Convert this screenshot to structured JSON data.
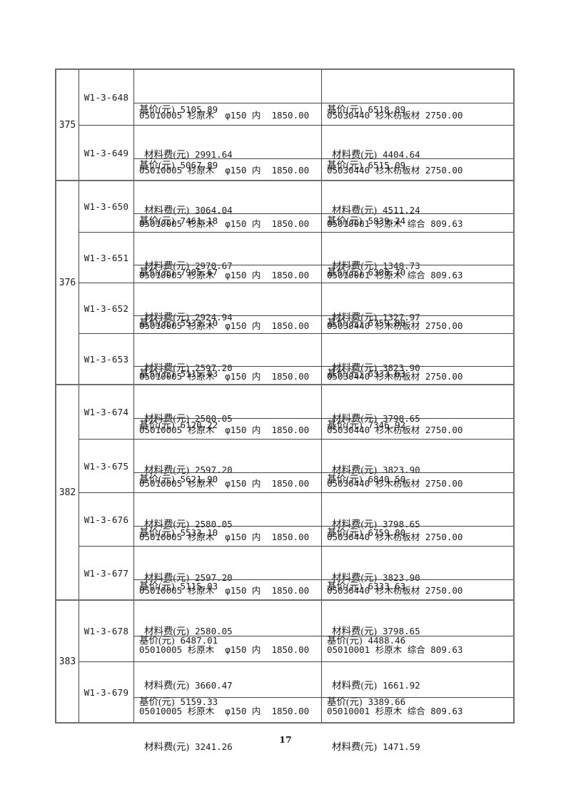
{
  "page": {
    "number": "17"
  },
  "labels": {
    "base_price": "基价(元)",
    "material_fee": "材料费(元)"
  },
  "groups": [
    {
      "id": "375",
      "items": [
        {
          "code": "W1-3-648",
          "left": {
            "base_price": "5105.89",
            "material_fee": "2991.64",
            "material": "05010005 杉原木  φ150 内  1850.00"
          },
          "right": {
            "base_price": "6518.89",
            "material_fee": "4404.64",
            "material": "05030440 杉木枋板材 2750.00"
          }
        },
        {
          "code": "W1-3-649",
          "left": {
            "base_price": "5067.89",
            "material_fee": "3064.04",
            "material": "05010005 杉原木  φ150 内  1850.00"
          },
          "right": {
            "base_price": "6515.09",
            "material_fee": "4511.24",
            "material": "05030440 杉木枋板材 2750.00"
          }
        }
      ]
    },
    {
      "id": "376",
      "items": [
        {
          "code": "W1-3-650",
          "left": {
            "base_price": "7461.18",
            "material_fee": "2970.67",
            "material": "05010005 杉原木  φ150 内  1850.00"
          },
          "right": {
            "base_price": "5839.24",
            "material_fee": "1348.73",
            "material": "05010001 杉原木 综合 809.63"
          }
        },
        {
          "code": "W1-3-651",
          "left": {
            "base_price": "7905.67",
            "material_fee": "2924.94",
            "material": "05010005 杉原木  φ150 内  1850.00"
          },
          "right": {
            "base_price": "6308.70",
            "material_fee": "1327.97",
            "material": "05010001 杉原木 综合 809.63"
          }
        },
        {
          "code": "W1-3-652",
          "left": {
            "base_price": "5533.10",
            "material_fee": "2597.20",
            "material": "05010005 杉原木  φ150 内  1850.00"
          },
          "right": {
            "base_price": "6759.80",
            "material_fee": "3823.90",
            "material": "05030440 杉木枋板材 2750.00"
          }
        },
        {
          "code": "W1-3-653",
          "left": {
            "base_price": "5115.03",
            "material_fee": "2580.05",
            "material": "05010005 杉原木  φ150 内  1850.00"
          },
          "right": {
            "base_price": "6333.63",
            "material_fee": "3798.65",
            "material": "05030440 杉木枋板材 2750.00"
          }
        }
      ]
    },
    {
      "id": "382",
      "items": [
        {
          "code": "W1-3-674",
          "left": {
            "base_price": "6120.22",
            "material_fee": "2597.20",
            "material": "05010005 杉原木  φ150 内  1850.00"
          },
          "right": {
            "base_price": "7346.92",
            "material_fee": "3823.90",
            "material": "05030440 杉木枋板材 2750.00"
          }
        },
        {
          "code": "W1-3-675",
          "left": {
            "base_price": "5621.90",
            "material_fee": "2580.05",
            "material": "05010005 杉原木  φ150 内  1850.00"
          },
          "right": {
            "base_price": "6840.50",
            "material_fee": "3798.65",
            "material": "05030440 杉木枋板材 2750.00"
          }
        },
        {
          "code": "W1-3-676",
          "left": {
            "base_price": "5533.10",
            "material_fee": "2597.20",
            "material": "05010005 杉原木  φ150 内  1850.00"
          },
          "right": {
            "base_price": "6759.80",
            "material_fee": "3823.90",
            "material": "05030440 杉木枋板材 2750.00"
          }
        },
        {
          "code": "W1-3-677",
          "left": {
            "base_price": "5115.03",
            "material_fee": "2580.05",
            "material": "05010005 杉原木  φ150 内  1850.00"
          },
          "right": {
            "base_price": "6333.63",
            "material_fee": "3798.65",
            "material": "05030440 杉木枋板材 2750.00"
          }
        }
      ]
    },
    {
      "id": "383",
      "items": [
        {
          "code": "W1-3-678",
          "left": {
            "base_price": "6487.01",
            "material_fee": "3660.47",
            "material": "05010005 杉原木  φ150 内  1850.00"
          },
          "right": {
            "base_price": "4488.46",
            "material_fee": "1661.92",
            "material": "05010001 杉原木 综合 809.63"
          }
        },
        {
          "code": "W1-3-679",
          "left": {
            "base_price": "5159.33",
            "material_fee": "3241.26",
            "material": "05010005 杉原木  φ150 内  1850.00"
          },
          "right": {
            "base_price": "3389.66",
            "material_fee": "1471.59",
            "material": "05010001 杉原木 综合 809.63"
          }
        }
      ]
    }
  ]
}
